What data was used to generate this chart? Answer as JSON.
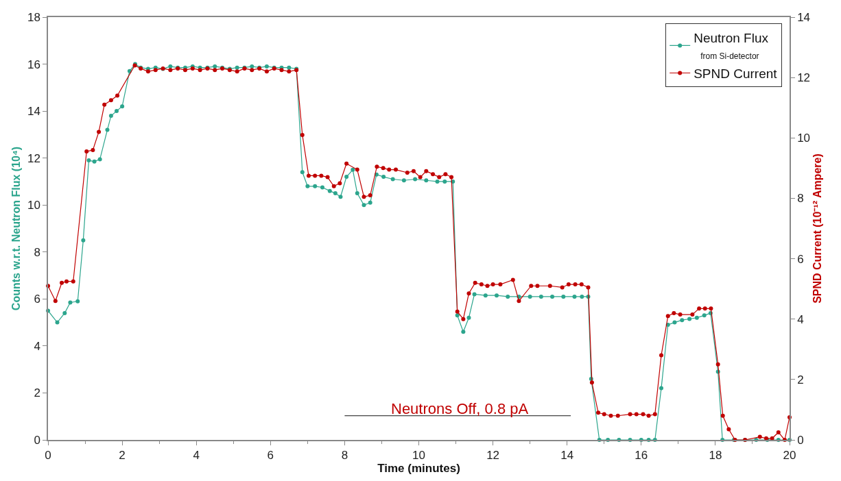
{
  "chart_data": {
    "type": "line",
    "xlabel": "Time (minutes)",
    "ylabel": "Counts w.r.t. Neutron Flux (10⁴)",
    "y2label": "SPND Current (10⁻¹² Ampere)",
    "xlim": [
      0,
      20
    ],
    "xticks": [
      0,
      2,
      4,
      6,
      8,
      10,
      12,
      14,
      16,
      18,
      20
    ],
    "ylim": [
      0,
      18
    ],
    "yticks": [
      0,
      2,
      4,
      6,
      8,
      10,
      12,
      14,
      16,
      18
    ],
    "y2lim": [
      0,
      14
    ],
    "y2ticks": [
      0,
      2,
      4,
      6,
      8,
      10,
      12,
      14
    ],
    "legend": "top right",
    "marker": "circle",
    "line_style": "solid",
    "annotations": [
      "Neutrons Off, 0.8 pA"
    ],
    "series": [
      {
        "name": "Neutron Flux\nfrom Si-detector",
        "color": "#2ca58d",
        "x": [
          0,
          0.25,
          0.45,
          0.6,
          0.8,
          0.95,
          1.1,
          1.25,
          1.4,
          1.6,
          1.7,
          1.85,
          2.0,
          2.2,
          2.35,
          2.5,
          2.7,
          2.9,
          3.1,
          3.3,
          3.5,
          3.7,
          3.9,
          4.1,
          4.3,
          4.5,
          4.7,
          4.9,
          5.1,
          5.3,
          5.5,
          5.7,
          5.9,
          6.1,
          6.3,
          6.5,
          6.7,
          6.86,
          7.0,
          7.2,
          7.4,
          7.6,
          7.75,
          7.89,
          8.05,
          8.22,
          8.34,
          8.52,
          8.69,
          8.86,
          9.05,
          9.3,
          9.6,
          9.9,
          10.2,
          10.5,
          10.7,
          10.92,
          11.04,
          11.2,
          11.35,
          11.5,
          11.8,
          12.1,
          12.4,
          12.7,
          13.0,
          13.3,
          13.6,
          13.9,
          14.2,
          14.4,
          14.57,
          14.65,
          14.87,
          15.1,
          15.4,
          15.7,
          16.0,
          16.2,
          16.37,
          16.54,
          16.72,
          16.9,
          17.1,
          17.3,
          17.5,
          17.7,
          17.87,
          18.07,
          18.19,
          18.5,
          18.8,
          19.1,
          19.4,
          19.7,
          20
        ],
        "values": [
          5.5,
          5.0,
          5.4,
          5.85,
          5.9,
          8.5,
          11.9,
          11.85,
          11.95,
          13.2,
          13.8,
          14.0,
          14.2,
          15.7,
          16.0,
          15.85,
          15.8,
          15.85,
          15.8,
          15.9,
          15.85,
          15.85,
          15.9,
          15.85,
          15.85,
          15.9,
          15.85,
          15.8,
          15.85,
          15.85,
          15.9,
          15.85,
          15.9,
          15.85,
          15.85,
          15.85,
          15.8,
          11.4,
          10.8,
          10.8,
          10.75,
          10.6,
          10.5,
          10.35,
          11.2,
          11.5,
          10.5,
          10.0,
          10.1,
          11.3,
          11.2,
          11.1,
          11.05,
          11.1,
          11.05,
          11.0,
          11.0,
          11.0,
          5.3,
          4.6,
          5.2,
          6.2,
          6.15,
          6.15,
          6.1,
          6.1,
          6.1,
          6.1,
          6.1,
          6.1,
          6.1,
          6.1,
          6.1,
          2.6,
          0,
          0,
          0,
          0,
          0,
          0,
          0,
          2.2,
          4.9,
          5.0,
          5.1,
          5.15,
          5.2,
          5.3,
          5.4,
          2.9,
          0,
          0,
          0,
          0,
          0,
          0,
          0
        ]
      },
      {
        "color": "#111111",
        "axis": "y2",
        "marker": "none",
        "x": [
          8,
          14.1
        ],
        "values": [
          0.8,
          0.8
        ]
      },
      {
        "name": "SPND Current",
        "color": "#c00000",
        "axis": "y2",
        "x": [
          0,
          0.2,
          0.37,
          0.5,
          0.68,
          1.04,
          1.21,
          1.37,
          1.52,
          1.7,
          1.87,
          2.34,
          2.5,
          2.7,
          2.9,
          3.1,
          3.3,
          3.5,
          3.7,
          3.9,
          4.1,
          4.3,
          4.5,
          4.7,
          4.9,
          5.1,
          5.3,
          5.5,
          5.7,
          5.9,
          6.1,
          6.3,
          6.5,
          6.7,
          6.86,
          7.03,
          7.2,
          7.37,
          7.54,
          7.71,
          7.87,
          8.05,
          8.34,
          8.52,
          8.69,
          8.87,
          9.04,
          9.2,
          9.38,
          9.69,
          9.86,
          10.04,
          10.2,
          10.38,
          10.55,
          10.72,
          10.88,
          11.04,
          11.2,
          11.35,
          11.52,
          11.69,
          11.85,
          12.0,
          12.2,
          12.54,
          12.7,
          13.03,
          13.2,
          13.54,
          13.87,
          14.04,
          14.22,
          14.39,
          14.57,
          14.67,
          14.84,
          15.0,
          15.18,
          15.37,
          15.7,
          15.87,
          16.05,
          16.2,
          16.37,
          16.54,
          16.72,
          16.88,
          17.05,
          17.38,
          17.56,
          17.72,
          17.88,
          18.07,
          18.2,
          18.36,
          18.53,
          18.8,
          19.2,
          19.37,
          19.53,
          19.7,
          19.87,
          20
        ],
        "values": [
          5.1,
          4.6,
          5.2,
          5.25,
          5.25,
          9.55,
          9.6,
          10.2,
          11.1,
          11.25,
          11.4,
          12.4,
          12.3,
          12.2,
          12.25,
          12.3,
          12.25,
          12.3,
          12.25,
          12.3,
          12.25,
          12.3,
          12.25,
          12.3,
          12.25,
          12.2,
          12.3,
          12.25,
          12.3,
          12.2,
          12.3,
          12.25,
          12.2,
          12.25,
          10.1,
          8.75,
          8.75,
          8.75,
          8.7,
          8.4,
          8.5,
          9.15,
          8.95,
          8.05,
          8.1,
          9.05,
          9.0,
          8.95,
          8.95,
          8.85,
          8.9,
          8.7,
          8.9,
          8.8,
          8.7,
          8.8,
          8.7,
          4.25,
          4.0,
          4.85,
          5.2,
          5.15,
          5.1,
          5.15,
          5.15,
          5.3,
          4.6,
          5.1,
          5.1,
          5.1,
          5.05,
          5.15,
          5.15,
          5.15,
          5.05,
          1.9,
          0.9,
          0.85,
          0.8,
          0.8,
          0.85,
          0.85,
          0.85,
          0.8,
          0.85,
          2.8,
          4.1,
          4.2,
          4.15,
          4.15,
          4.35,
          4.35,
          4.35,
          2.5,
          0.8,
          0.35,
          0,
          0,
          0.1,
          0.05,
          0.05,
          0.25,
          0,
          0.75
        ]
      }
    ]
  }
}
